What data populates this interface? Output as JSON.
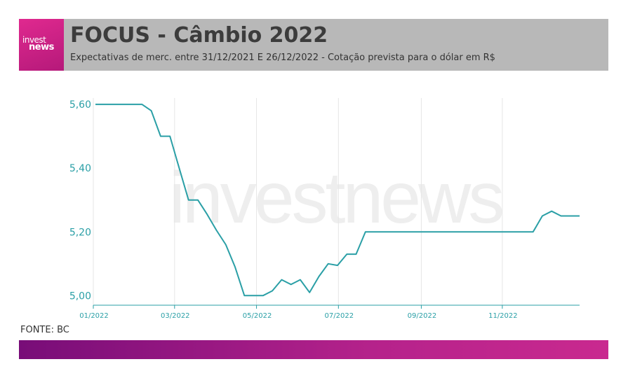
{
  "header": {
    "logo_top": "invest",
    "logo_bottom": "news",
    "title": "FOCUS - Câmbio 2022",
    "subtitle": "Expectativas de merc. entre 31/12/2021 E 26/12/2022 - Cotação prevista para o dólar em R$"
  },
  "watermark": "investnews",
  "source": "FONTE: BC",
  "colors": {
    "line": "#2a9fa6",
    "axis_text": "#2a9fa6",
    "header_bg": "#b8b8b8",
    "logo_bg": "#d02488",
    "footer_start": "#780d78",
    "footer_end": "#c9298f"
  },
  "chart_data": {
    "type": "line",
    "x_domain": [
      0,
      52
    ],
    "ylim": [
      4.97,
      5.62
    ],
    "yticks": [
      5.0,
      5.2,
      5.4,
      5.6
    ],
    "ytick_labels": [
      "5,00",
      "5,20",
      "5,40",
      "5,60"
    ],
    "xticks": [
      0,
      8.5,
      17.3,
      26.1,
      35.0,
      43.7
    ],
    "xtick_labels": [
      "01/2022",
      "03/2022",
      "05/2022",
      "07/2022",
      "09/2022",
      "11/2022"
    ],
    "grid": "vertical",
    "series": [
      {
        "x": [
          0,
          5,
          6,
          7,
          8,
          9,
          10,
          11,
          12,
          13,
          14,
          15,
          16,
          17,
          18,
          19,
          20,
          21,
          22,
          23,
          24,
          25,
          26,
          27,
          28,
          29,
          30,
          31,
          32,
          33,
          34,
          35,
          36,
          37,
          38,
          39,
          40,
          41,
          42,
          43,
          44,
          45,
          46,
          47,
          48,
          49,
          50,
          51,
          52
        ],
        "y": [
          5.6,
          5.6,
          5.58,
          5.5,
          5.5,
          5.4,
          5.3,
          5.3,
          5.255,
          5.205,
          5.16,
          5.09,
          5.0,
          5.0,
          5.0,
          5.015,
          5.05,
          5.035,
          5.05,
          5.01,
          5.06,
          5.1,
          5.095,
          5.13,
          5.13,
          5.2,
          5.2,
          5.2,
          5.2,
          5.2,
          5.2,
          5.2,
          5.2,
          5.2,
          5.2,
          5.2,
          5.2,
          5.2,
          5.2,
          5.2,
          5.2,
          5.2,
          5.2,
          5.2,
          5.25,
          5.265,
          5.25,
          5.25,
          5.25
        ]
      }
    ]
  }
}
